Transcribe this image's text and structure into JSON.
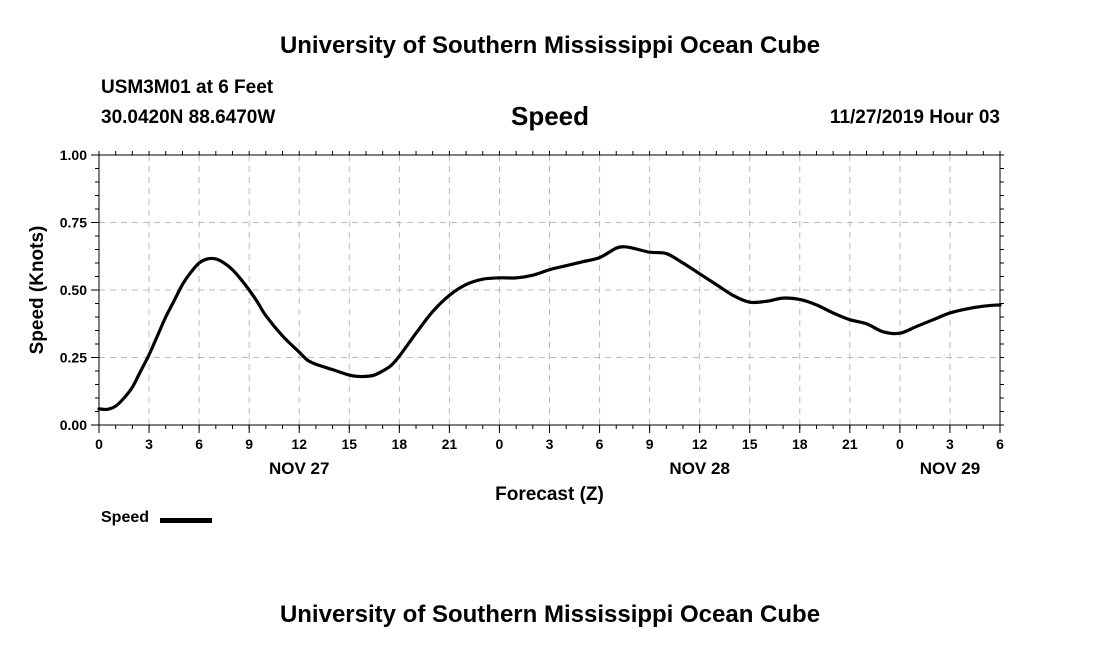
{
  "header": {
    "title_top": "University of Southern Mississippi Ocean Cube",
    "station": "USM3M01 at 6 Feet",
    "coords": "30.0420N 88.6470W",
    "chart_title": "Speed",
    "datetime": "11/27/2019 Hour 03",
    "title_bottom": "University of Southern Mississippi Ocean Cube"
  },
  "legend": {
    "label": "Speed"
  },
  "chart_data": {
    "type": "line",
    "title": "Speed",
    "xlabel": "Forecast (Z)",
    "ylabel": "Speed (Knots)",
    "xlim": [
      0,
      54
    ],
    "ylim": [
      0,
      1
    ],
    "grid": true,
    "legend_position": "bottom-left",
    "y_ticks": [
      "0.00",
      "0.25",
      "0.50",
      "0.75",
      "1.00"
    ],
    "y_tick_values": [
      0,
      0.25,
      0.5,
      0.75,
      1.0
    ],
    "x_ticks": [
      "0",
      "3",
      "6",
      "9",
      "12",
      "15",
      "18",
      "21",
      "0",
      "3",
      "6",
      "9",
      "12",
      "15",
      "18",
      "21",
      "0",
      "3",
      "6"
    ],
    "x_tick_values": [
      0,
      3,
      6,
      9,
      12,
      15,
      18,
      21,
      24,
      27,
      30,
      33,
      36,
      39,
      42,
      45,
      48,
      51,
      54
    ],
    "day_labels": [
      {
        "label": "NOV 27",
        "x": 12
      },
      {
        "label": "NOV 28",
        "x": 36
      },
      {
        "label": "NOV 29",
        "x": 51
      }
    ],
    "series": [
      {
        "name": "Speed",
        "color": "#000000",
        "x": [
          0,
          0.5,
          1,
          1.5,
          2,
          2.5,
          3,
          3.5,
          4,
          4.5,
          5,
          5.5,
          6,
          6.5,
          7,
          7.5,
          8,
          8.5,
          9,
          9.5,
          10,
          11,
          12,
          12.5,
          13,
          14,
          15,
          15.5,
          16,
          16.5,
          17,
          17.5,
          18,
          19,
          20,
          21,
          22,
          23,
          24,
          25,
          26,
          27,
          28,
          29,
          30,
          31,
          31.5,
          32,
          33,
          34,
          35,
          36,
          37,
          38,
          39,
          40,
          41,
          42,
          43,
          44,
          45,
          46,
          47,
          48,
          49,
          50,
          51,
          52,
          53,
          54
        ],
        "values": [
          0.06,
          0.058,
          0.07,
          0.1,
          0.14,
          0.2,
          0.26,
          0.33,
          0.4,
          0.46,
          0.52,
          0.565,
          0.6,
          0.615,
          0.615,
          0.6,
          0.575,
          0.54,
          0.5,
          0.455,
          0.405,
          0.33,
          0.27,
          0.24,
          0.225,
          0.205,
          0.185,
          0.18,
          0.18,
          0.185,
          0.2,
          0.22,
          0.255,
          0.34,
          0.42,
          0.48,
          0.52,
          0.54,
          0.545,
          0.545,
          0.555,
          0.575,
          0.59,
          0.605,
          0.62,
          0.655,
          0.66,
          0.655,
          0.64,
          0.635,
          0.6,
          0.56,
          0.52,
          0.48,
          0.455,
          0.458,
          0.47,
          0.465,
          0.445,
          0.415,
          0.39,
          0.375,
          0.345,
          0.34,
          0.365,
          0.39,
          0.415,
          0.43,
          0.44,
          0.445
        ]
      }
    ]
  }
}
